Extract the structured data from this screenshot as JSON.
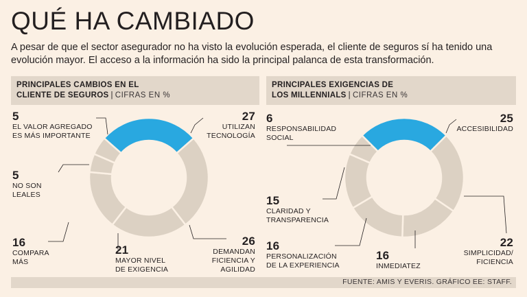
{
  "title": "QUÉ HA CAMBIADO",
  "subtitle": "A pesar de que el sector asegurador no ha visto la evolución esperada, el cliente de seguros sí ha tenido una evolución mayor. El acceso a la información ha sido la principal palanca de esta transformación.",
  "footer": "FUENTE: AMIS Y EVERIS.  GRÁFICO EE: STAFF.",
  "colors": {
    "highlight": "#29a8e0",
    "base": "#dcd1c3",
    "background": "#fbf0e4",
    "header": "#e2d7ca"
  },
  "chart_data": [
    {
      "type": "pie",
      "title_bold_line1": "PRINCIPALES CAMBIOS EN EL",
      "title_bold_line2": "CLIENTE DE SEGUROS",
      "title_light": "CIFRAS EN %",
      "slices": [
        {
          "label_lines": [
            "UTILIZAN",
            "TECNOLOGÍA"
          ],
          "value": 27,
          "highlight": true
        },
        {
          "label_lines": [
            "DEMANDAN",
            "FICIENCIA Y",
            "AGILIDAD"
          ],
          "value": 26,
          "highlight": false
        },
        {
          "label_lines": [
            "MAYOR NIVEL",
            "DE EXIGENCIA"
          ],
          "value": 21,
          "highlight": false
        },
        {
          "label_lines": [
            "COMPARA",
            "MÁS"
          ],
          "value": 16,
          "highlight": false
        },
        {
          "label_lines": [
            "NO SON",
            "LEALES"
          ],
          "value": 5,
          "highlight": false
        },
        {
          "label_lines": [
            "EL VALOR AGREGADO",
            "ES MÁS IMPORTANTE"
          ],
          "value": 5,
          "highlight": false
        }
      ]
    },
    {
      "type": "pie",
      "title_bold_line1": "PRINCIPALES EXIGENCIAS  DE",
      "title_bold_line2": "LOS MILLENNIALS",
      "title_light": "CIFRAS EN %",
      "slices": [
        {
          "label_lines": [
            "ACCESIBILIDAD"
          ],
          "value": 25,
          "highlight": true
        },
        {
          "label_lines": [
            "SIMPLICIDAD/",
            "FICIENCIA"
          ],
          "value": 22,
          "highlight": false
        },
        {
          "label_lines": [
            "INMEDIATEZ"
          ],
          "value": 16,
          "highlight": false
        },
        {
          "label_lines": [
            "PERSONALIZACIÓN",
            "DE LA EXPERIENCIA"
          ],
          "value": 16,
          "highlight": false
        },
        {
          "label_lines": [
            "CLARIDAD Y",
            "TRANSPARENCIA"
          ],
          "value": 15,
          "highlight": false
        },
        {
          "label_lines": [
            "RESPONSABILIDAD",
            "SOCIAL"
          ],
          "value": 6,
          "highlight": false
        }
      ]
    }
  ]
}
